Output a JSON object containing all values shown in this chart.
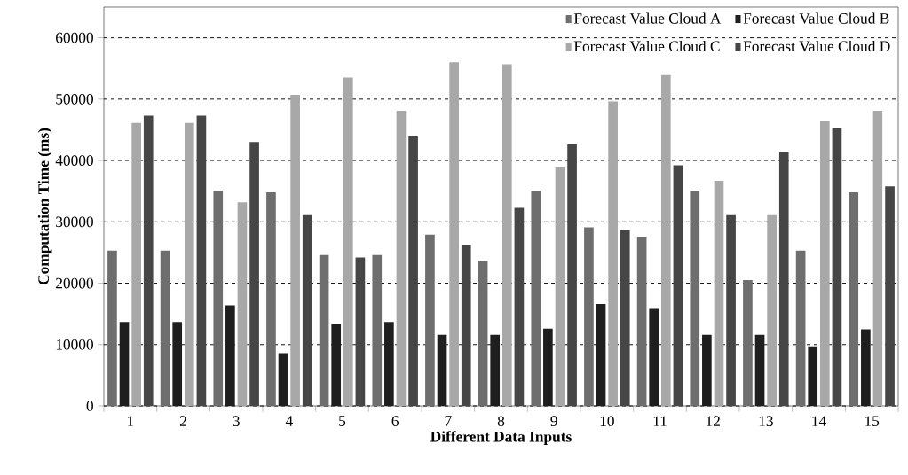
{
  "chart_data": {
    "type": "bar",
    "xlabel": "Different Data Inputs",
    "ylabel": "Computation Time (ms)",
    "categories": [
      "1",
      "2",
      "3",
      "4",
      "5",
      "6",
      "7",
      "8",
      "9",
      "10",
      "11",
      "12",
      "13",
      "14",
      "15"
    ],
    "series": [
      {
        "name": "Forecast Value Cloud A",
        "color": "#6e6e6e",
        "values": [
          25300,
          25300,
          35100,
          34800,
          24600,
          24600,
          27900,
          23600,
          35100,
          29100,
          27600,
          35100,
          20500,
          25300,
          34800
        ]
      },
      {
        "name": "Forecast Value Cloud B",
        "color": "#1e1e1e",
        "values": [
          13700,
          13700,
          16400,
          8600,
          13300,
          13700,
          11600,
          11600,
          12600,
          16600,
          15800,
          11600,
          11600,
          9700,
          12500
        ]
      },
      {
        "name": "Forecast Value Cloud C",
        "color": "#a8a8a8",
        "values": [
          46100,
          46100,
          33200,
          50700,
          53500,
          48100,
          56000,
          55700,
          38900,
          49600,
          53900,
          36700,
          31100,
          46500,
          48100
        ]
      },
      {
        "name": "Forecast Value Cloud D",
        "color": "#464646",
        "values": [
          47300,
          47300,
          43000,
          31100,
          24200,
          43900,
          26200,
          32300,
          42600,
          28600,
          39200,
          31100,
          41300,
          45300,
          35800
        ]
      }
    ],
    "ylim": [
      0,
      65000
    ],
    "yticks": [
      0,
      10000,
      20000,
      30000,
      40000,
      50000,
      60000
    ],
    "grid": "y",
    "legend": "top right"
  }
}
